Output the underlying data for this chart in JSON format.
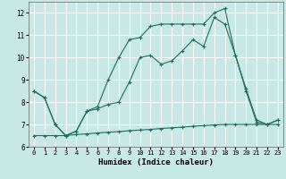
{
  "xlabel": "Humidex (Indice chaleur)",
  "xlim": [
    -0.5,
    23.5
  ],
  "ylim": [
    6,
    12.5
  ],
  "yticks": [
    6,
    7,
    8,
    9,
    10,
    11,
    12
  ],
  "xticks": [
    0,
    1,
    2,
    3,
    4,
    5,
    6,
    7,
    8,
    9,
    10,
    11,
    12,
    13,
    14,
    15,
    16,
    17,
    18,
    19,
    20,
    21,
    22,
    23
  ],
  "background_color": "#c8e8e5",
  "grid_color": "#ffffff",
  "line_color": "#1a6e60",
  "line1_x": [
    0,
    1,
    2,
    3,
    4,
    5,
    6,
    7,
    8,
    9,
    10,
    11,
    12,
    13,
    14,
    15,
    16,
    17,
    18,
    19,
    20,
    21,
    22,
    23
  ],
  "line1_y": [
    8.5,
    8.2,
    7.0,
    6.5,
    6.7,
    7.6,
    7.7,
    7.9,
    8.0,
    8.9,
    10.0,
    10.1,
    9.7,
    9.85,
    10.3,
    10.8,
    10.5,
    11.8,
    11.5,
    10.1,
    8.5,
    7.1,
    7.0,
    7.2
  ],
  "line2_x": [
    0,
    1,
    2,
    3,
    4,
    5,
    6,
    7,
    8,
    9,
    10,
    11,
    12,
    13,
    14,
    15,
    16,
    17,
    18,
    19,
    20,
    21,
    22,
    23
  ],
  "line2_y": [
    8.5,
    8.2,
    7.0,
    6.5,
    6.7,
    7.6,
    7.8,
    9.0,
    10.0,
    10.8,
    10.9,
    11.4,
    11.5,
    11.5,
    11.5,
    11.5,
    11.5,
    12.0,
    12.2,
    10.1,
    8.6,
    7.2,
    7.0,
    7.2
  ],
  "line3_x": [
    0,
    1,
    2,
    3,
    4,
    5,
    6,
    7,
    8,
    9,
    10,
    11,
    12,
    13,
    14,
    15,
    16,
    17,
    18,
    19,
    20,
    21,
    22,
    23
  ],
  "line3_y": [
    6.5,
    6.5,
    6.5,
    6.5,
    6.55,
    6.58,
    6.62,
    6.65,
    6.68,
    6.72,
    6.75,
    6.78,
    6.82,
    6.85,
    6.88,
    6.92,
    6.95,
    6.98,
    7.0,
    7.0,
    7.0,
    7.0,
    7.0,
    7.0
  ]
}
